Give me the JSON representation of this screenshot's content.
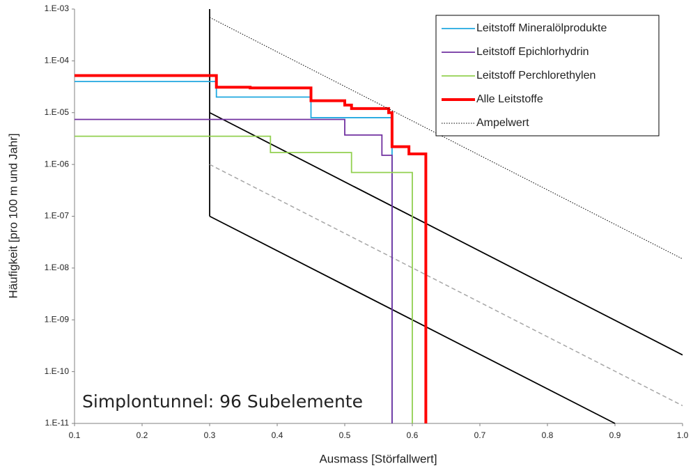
{
  "chart_data": {
    "type": "line",
    "log_y": true,
    "x_label": "Ausmass [Störfallwert]",
    "y_label": "Häufigkeit [pro 100 m und Jahr]",
    "annotation": "Simplontunnel: 96 Subelemente",
    "xlim": [
      0.1,
      1.0
    ],
    "xticks": [
      0.1,
      0.2,
      0.3,
      0.4,
      0.5,
      0.6,
      0.7,
      0.8,
      0.9,
      {
        "value": 1,
        "label": "1.0"
      }
    ],
    "ylim": [
      1e-11,
      0.001
    ],
    "yticks": [
      {
        "value": 1e-11,
        "label": "1.E-11"
      },
      {
        "value": 1e-10,
        "label": "1.E-10"
      },
      {
        "value": 1e-09,
        "label": "1.E-09"
      },
      {
        "value": 1e-08,
        "label": "1.E-08"
      },
      {
        "value": 1e-07,
        "label": "1.E-07"
      },
      {
        "value": 1e-06,
        "label": "1.E-06"
      },
      {
        "value": 1e-05,
        "label": "1.E-05"
      },
      {
        "value": 0.0001,
        "label": "1.E-04"
      },
      {
        "value": 0.001,
        "label": "1.E-03"
      }
    ],
    "legend": "upper right",
    "series": [
      {
        "name": "Leitstoff Mineralölprodukte",
        "color": "#20a8e0",
        "style": "solid",
        "x": [
          0.1,
          0.31,
          0.31,
          0.45,
          0.45,
          0.57,
          0.57
        ],
        "values": [
          4e-05,
          4e-05,
          2e-05,
          2e-05,
          8e-06,
          8e-06,
          1e-11
        ]
      },
      {
        "name": "Leitstoff Epichlorhydrin",
        "color": "#7030a0",
        "style": "solid",
        "x": [
          0.1,
          0.5,
          0.5,
          0.555,
          0.555,
          0.57,
          0.57
        ],
        "values": [
          7.4e-06,
          7.4e-06,
          3.7e-06,
          3.7e-06,
          1.5e-06,
          1.5e-06,
          1e-11
        ]
      },
      {
        "name": "Leitstoff Perchlorethylen",
        "color": "#92d050",
        "style": "solid",
        "x": [
          0.1,
          0.39,
          0.39,
          0.51,
          0.51,
          0.6,
          0.6
        ],
        "values": [
          3.5e-06,
          3.5e-06,
          1.7e-06,
          1.7e-06,
          7e-07,
          7e-07,
          1e-11
        ]
      },
      {
        "name": "Alle Leitstoffe",
        "color": "#ff0000",
        "style": "bold",
        "x": [
          0.1,
          0.31,
          0.31,
          0.36,
          0.36,
          0.45,
          0.45,
          0.5,
          0.5,
          0.51,
          0.51,
          0.565,
          0.565,
          0.57,
          0.57,
          0.595,
          0.595,
          0.62,
          0.62
        ],
        "values": [
          5.2e-05,
          5.2e-05,
          3.1e-05,
          3.1e-05,
          3e-05,
          3e-05,
          1.7e-05,
          1.7e-05,
          1.4e-05,
          1.4e-05,
          1.2e-05,
          1.2e-05,
          1e-05,
          1e-05,
          2.2e-06,
          2.2e-06,
          1.6e-06,
          1.6e-06,
          1e-11
        ]
      },
      {
        "name": "Ampelwert",
        "color": "#000000",
        "style": "dotted",
        "x": [
          0.3,
          1.0
        ],
        "values": [
          0.00069,
          1.5e-08
        ]
      }
    ],
    "reference_lines": [
      {
        "color": "#000000",
        "style": "solid",
        "x": [
          0.3,
          0.3
        ],
        "values": [
          0.001,
          1e-07
        ]
      },
      {
        "color": "#000000",
        "style": "solid",
        "x": [
          0.3,
          1.0
        ],
        "values": [
          1e-05,
          2.1e-10
        ]
      },
      {
        "color": "#000000",
        "style": "solid",
        "x": [
          0.3,
          0.9
        ],
        "values": [
          1e-07,
          1e-11
        ]
      },
      {
        "color": "#a6a6a6",
        "style": "dashed",
        "x": [
          0.3,
          1.0
        ],
        "values": [
          1e-06,
          2.2e-11
        ]
      }
    ]
  }
}
